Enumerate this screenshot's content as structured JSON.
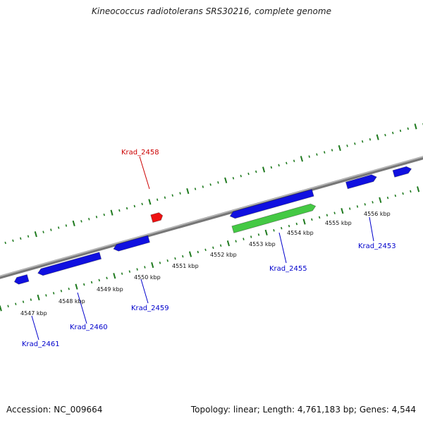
{
  "title": "Kineococcus radiotolerans SRS30216, complete genome",
  "footer": {
    "accession": "Accession: NC_009664",
    "summary": "Topology: linear; Length: 4,761,183 bp; Genes: 4,544"
  },
  "colors": {
    "backbone": "#8c8c8c",
    "tick": "#1f7a1f",
    "forward_gene": "#1010e0",
    "reverse_gene": "#1010e0",
    "rna_gene": "#44c944",
    "highlight_gene": "#ee1111",
    "label_blue": "#0000cc",
    "label_red": "#cc0000"
  },
  "scale_labels": [
    "4547 kbp",
    "4548 kbp",
    "4549 kbp",
    "4550 kbp",
    "4551 kbp",
    "4552 kbp",
    "4553 kbp",
    "4554 kbp",
    "4555 kbp",
    "4556 kbp"
  ],
  "gene_labels": [
    {
      "name": "Krad_2458",
      "color": "red"
    },
    {
      "name": "Krad_2455",
      "color": "blue"
    },
    {
      "name": "Krad_2453",
      "color": "blue"
    },
    {
      "name": "Krad_2459",
      "color": "blue"
    },
    {
      "name": "Krad_2460",
      "color": "blue"
    },
    {
      "name": "Krad_2461",
      "color": "blue"
    }
  ]
}
